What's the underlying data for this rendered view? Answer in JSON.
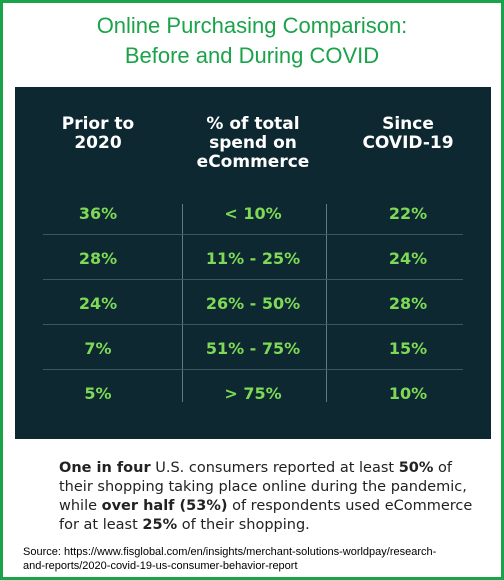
{
  "title": {
    "line1": "Online Purchasing Comparison:",
    "line2": "Before and During COVID"
  },
  "chart_data": {
    "type": "table",
    "columns": [
      {
        "line1": "Prior to",
        "line2": "2020",
        "line3": ""
      },
      {
        "line1": "% of total",
        "line2": "spend on",
        "line3": "eCommerce"
      },
      {
        "line1": "Since",
        "line2": "COVID-19",
        "line3": ""
      }
    ],
    "rows": [
      [
        "36%",
        "< 10%",
        "22%"
      ],
      [
        "28%",
        "11% - 25%",
        "24%"
      ],
      [
        "24%",
        "26% - 50%",
        "28%"
      ],
      [
        "7%",
        "51% - 75%",
        "15%"
      ],
      [
        "5%",
        "> 75%",
        "10%"
      ]
    ]
  },
  "summary": {
    "s1": "One in four",
    "s2": " U.S. consumers reported at least ",
    "s3": "50%",
    "s4": " of their shopping taking place online during the pandemic, while ",
    "s5": "over half (53%)",
    "s6": " of respondents used eCommerce for at least ",
    "s7": "25%",
    "s8": " of their shopping."
  },
  "source": {
    "line1": "Source: https://www.fisglobal.com/en/insights/merchant-solutions-worldpay/research-",
    "line2": "and-reports/2020-covid-19-us-consumer-behavior-report"
  },
  "colors": {
    "accent_green": "#1ba34a",
    "panel_bg": "#0d2830",
    "value_green": "#7ed957"
  }
}
